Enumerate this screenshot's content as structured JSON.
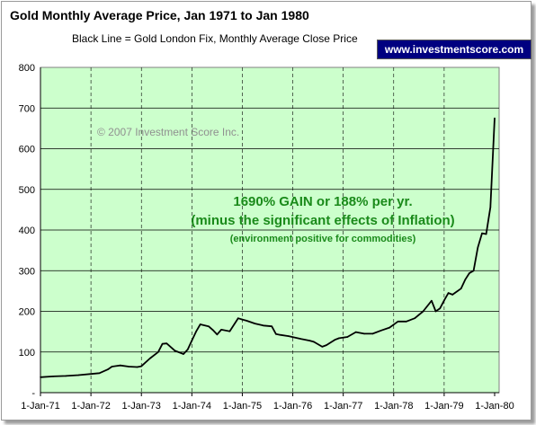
{
  "chart_data": {
    "type": "line",
    "title": "Gold Monthly Average Price, Jan 1971 to Jan 1980",
    "subtitle": "Black Line = Gold London Fix, Monthly Average Close Price",
    "xlabel": "",
    "ylabel": "",
    "ylim": [
      0,
      800
    ],
    "yticks": [
      0,
      100,
      200,
      300,
      400,
      500,
      600,
      700,
      800
    ],
    "ytick_labels": [
      "-",
      "100",
      "200",
      "300",
      "400",
      "500",
      "600",
      "700",
      "800"
    ],
    "xlim": [
      "1971-01",
      "1980-01"
    ],
    "xtick_labels": [
      "1-Jan-71",
      "1-Jan-72",
      "1-Jan-73",
      "1-Jan-74",
      "1-Jan-75",
      "1-Jan-76",
      "1-Jan-77",
      "1-Jan-78",
      "1-Jan-79",
      "1-Jan-80"
    ],
    "grid": true,
    "plot_background": "#ccffcc",
    "line_color": "#000000",
    "series": [
      {
        "x": [
          "1971-01",
          "1971-04",
          "1971-07",
          "1971-10",
          "1972-01",
          "1972-03",
          "1972-05",
          "1972-06",
          "1972-08",
          "1972-10",
          "1972-12",
          "1973-01",
          "1973-03",
          "1973-05",
          "1973-06",
          "1973-07",
          "1973-09",
          "1973-11",
          "1973-12",
          "1974-01",
          "1974-02",
          "1974-03",
          "1974-05",
          "1974-06",
          "1974-07",
          "1974-08",
          "1974-10",
          "1974-12",
          "1975-01",
          "1975-02",
          "1975-04",
          "1975-06",
          "1975-08",
          "1975-09",
          "1975-10",
          "1975-12",
          "1976-03",
          "1976-05",
          "1976-06",
          "1976-08",
          "1976-09",
          "1976-11",
          "1976-12",
          "1977-02",
          "1977-04",
          "1977-06",
          "1977-08",
          "1977-10",
          "1977-12",
          "1978-02",
          "1978-04",
          "1978-06",
          "1978-08",
          "1978-10",
          "1978-11",
          "1978-12",
          "1979-01",
          "1979-02",
          "1979-03",
          "1979-05",
          "1979-06",
          "1979-07",
          "1979-08",
          "1979-09",
          "1979-10",
          "1979-11",
          "1979-12",
          "1980-01"
        ],
        "values": [
          38,
          40,
          41,
          43,
          46,
          48,
          57,
          64,
          67,
          64,
          63,
          65,
          84,
          100,
          120,
          121,
          103,
          95,
          106,
          128,
          150,
          168,
          163,
          154,
          143,
          155,
          151,
          183,
          180,
          177,
          170,
          165,
          163,
          144,
          142,
          139,
          132,
          128,
          125,
          113,
          117,
          130,
          134,
          137,
          149,
          145,
          145,
          153,
          160,
          175,
          175,
          183,
          200,
          226,
          200,
          207,
          227,
          245,
          241,
          256,
          278,
          294,
          300,
          357,
          392,
          390,
          456,
          675
        ]
      }
    ],
    "annotations": {
      "copyright": "© 2007 Investment Score Inc.",
      "gain_line1": "1690% GAIN or 188% per yr.",
      "gain_line2": "(minus the significant effects of Inflation)",
      "gain_line3": "(environment positive for commodities)"
    },
    "brand": "www.investmentscore.com"
  }
}
